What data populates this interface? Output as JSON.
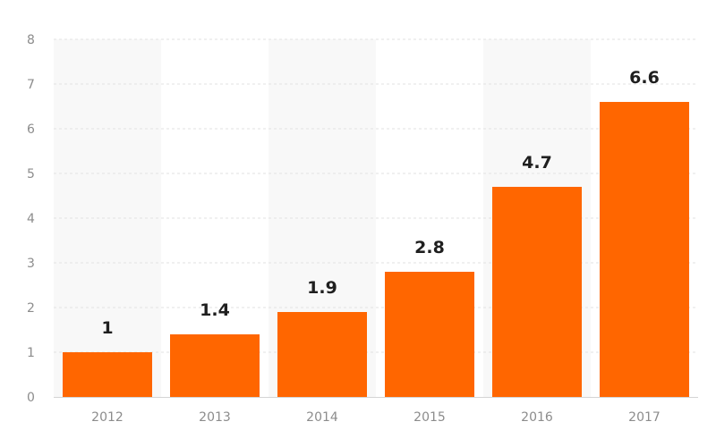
{
  "chart_data": {
    "type": "bar",
    "title": "",
    "xlabel": "",
    "ylabel": "",
    "categories": [
      "2012",
      "2013",
      "2014",
      "2015",
      "2016",
      "2017"
    ],
    "values": [
      1,
      1.4,
      1.9,
      2.8,
      4.7,
      6.6
    ],
    "data_labels": [
      "1",
      "1.4",
      "1.9",
      "2.8",
      "4.7",
      "6.6"
    ],
    "ylim": [
      0,
      8
    ],
    "yticks": [
      "0",
      "1",
      "2",
      "3",
      "4",
      "5",
      "6",
      "7",
      "8"
    ],
    "grid": true,
    "legend": "none",
    "colors": {
      "bar": "#ff6600",
      "band": "#f8f8f8",
      "grid": "#e2e2e2",
      "axis": "#d4d4d4"
    }
  }
}
